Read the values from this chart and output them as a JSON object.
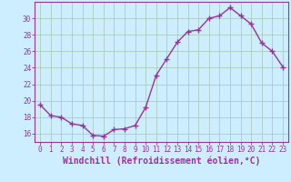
{
  "x": [
    0,
    1,
    2,
    3,
    4,
    5,
    6,
    7,
    8,
    9,
    10,
    11,
    12,
    13,
    14,
    15,
    16,
    17,
    18,
    19,
    20,
    21,
    22,
    23
  ],
  "y": [
    19.5,
    18.2,
    18.0,
    17.2,
    17.0,
    15.8,
    15.7,
    16.5,
    16.6,
    17.0,
    19.2,
    23.1,
    25.1,
    27.1,
    28.4,
    28.6,
    30.0,
    30.3,
    31.3,
    30.3,
    29.3,
    27.0,
    26.0,
    24.1
  ],
  "line_color": "#993399",
  "marker": "+",
  "markersize": 4,
  "linewidth": 1.0,
  "xlabel": "Windchill (Refroidissement éolien,°C)",
  "xlabel_fontsize": 7,
  "ylabel_ticks": [
    16,
    18,
    20,
    22,
    24,
    26,
    28,
    30
  ],
  "xtick_labels": [
    "0",
    "1",
    "2",
    "3",
    "4",
    "5",
    "6",
    "7",
    "8",
    "9",
    "10",
    "11",
    "12",
    "13",
    "14",
    "15",
    "16",
    "17",
    "18",
    "19",
    "20",
    "21",
    "22",
    "23"
  ],
  "ylim": [
    15.0,
    32.0
  ],
  "xlim": [
    -0.5,
    23.5
  ],
  "background_color": "#cceeff",
  "grid_color": "#aaccbb",
  "tick_color": "#993399",
  "tick_fontsize": 5.5,
  "axes_color": "#993399",
  "xlabel_bold": true
}
